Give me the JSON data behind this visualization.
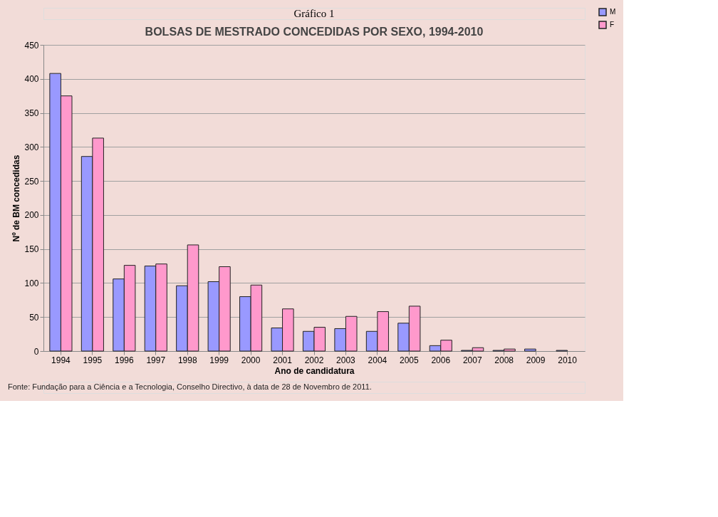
{
  "chart_data": {
    "type": "bar",
    "title": "BOLSAS DE MESTRADO CONCEDIDAS POR SEXO, 1994-2010",
    "xlabel": "Ano de candidatura",
    "ylabel": "Nº de BM concedidas",
    "categories": [
      "1994",
      "1995",
      "1996",
      "1997",
      "1998",
      "1999",
      "2000",
      "2001",
      "2002",
      "2003",
      "2004",
      "2005",
      "2006",
      "2007",
      "2008",
      "2009",
      "2010"
    ],
    "series": [
      {
        "name": "M",
        "color": "#9999ff",
        "values": [
          408,
          286,
          106,
          125,
          96,
          102,
          80,
          34,
          29,
          33,
          29,
          41,
          8,
          1,
          1,
          3,
          1
        ]
      },
      {
        "name": "F",
        "color": "#ff99cc",
        "values": [
          375,
          313,
          126,
          128,
          156,
          124,
          97,
          62,
          35,
          51,
          58,
          66,
          16,
          5,
          3,
          null,
          null
        ]
      }
    ],
    "ylim": [
      0,
      450
    ],
    "yticks": [
      0,
      50,
      100,
      150,
      200,
      250,
      300,
      350,
      400,
      450
    ],
    "grid": "y",
    "legend": "right",
    "annotations": [
      "Gráfico 1",
      "Fonte: Fundação para a Ciência e a Tecnologia, Conselho Directivo, à data de 28 de Novembro de 2011."
    ]
  }
}
